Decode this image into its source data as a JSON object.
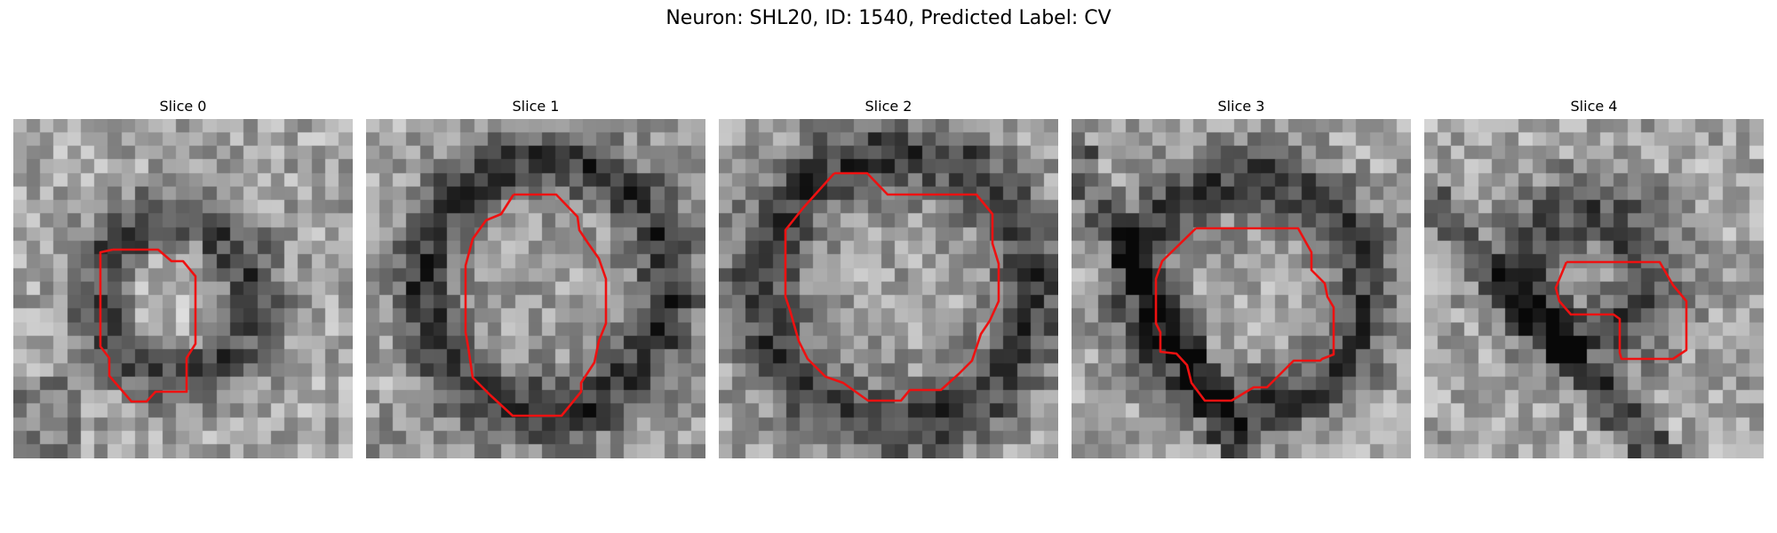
{
  "figure": {
    "title": "Neuron: SHL20, ID: 1540, Predicted Label: CV"
  },
  "slices": [
    {
      "title": "Slice 0",
      "contour_color": "#ee1111"
    },
    {
      "title": "Slice 1",
      "contour_color": "#ee1111"
    },
    {
      "title": "Slice 2",
      "contour_color": "#ee1111"
    },
    {
      "title": "Slice 3",
      "contour_color": "#ee1111"
    },
    {
      "title": "Slice 4",
      "contour_color": "#ee1111"
    }
  ]
}
